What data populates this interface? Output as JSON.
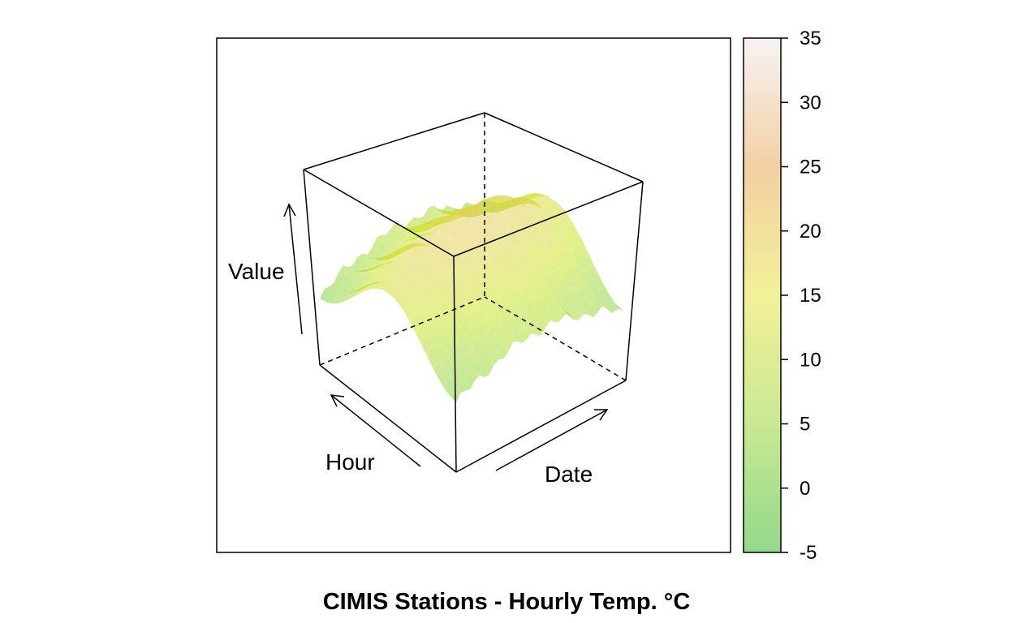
{
  "chart_data": {
    "type": "surface3d",
    "title": "CIMIS Stations - Hourly Temp. °C",
    "axes": {
      "x": {
        "label": "Date"
      },
      "y": {
        "label": "Hour"
      },
      "z": {
        "label": "Value"
      }
    },
    "colorbar": {
      "ticks": [
        35,
        30,
        25,
        20,
        15,
        10,
        5,
        0,
        -5
      ],
      "range": [
        -5,
        35
      ],
      "colors": {
        "low": "#93d98a",
        "lowmid": "#c9e893",
        "mid": "#f1f197",
        "highmid": "#f2cfa3",
        "high": "#f7f3f3"
      }
    },
    "grid": false,
    "legend": "right"
  }
}
